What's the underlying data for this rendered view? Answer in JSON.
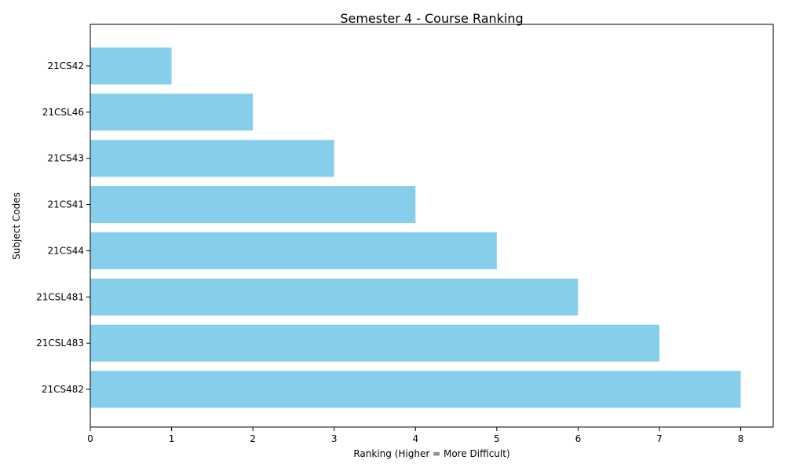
{
  "chart_data": {
    "type": "bar",
    "orientation": "horizontal",
    "title": "Semester 4 - Course Ranking",
    "xlabel": "Ranking (Higher = More Difficult)",
    "ylabel": "Subject Codes",
    "categories": [
      "21CS42",
      "21CSL46",
      "21CS43",
      "21CS41",
      "21CS44",
      "21CSL481",
      "21CSL483",
      "21CS482"
    ],
    "values": [
      1,
      2,
      3,
      4,
      5,
      6,
      7,
      8
    ],
    "xlim": [
      0,
      8.4
    ],
    "xticks": [
      "0",
      "1",
      "2",
      "3",
      "4",
      "5",
      "6",
      "7",
      "8"
    ],
    "bar_color": "#87CEEB",
    "grid": false,
    "legend": "none"
  }
}
